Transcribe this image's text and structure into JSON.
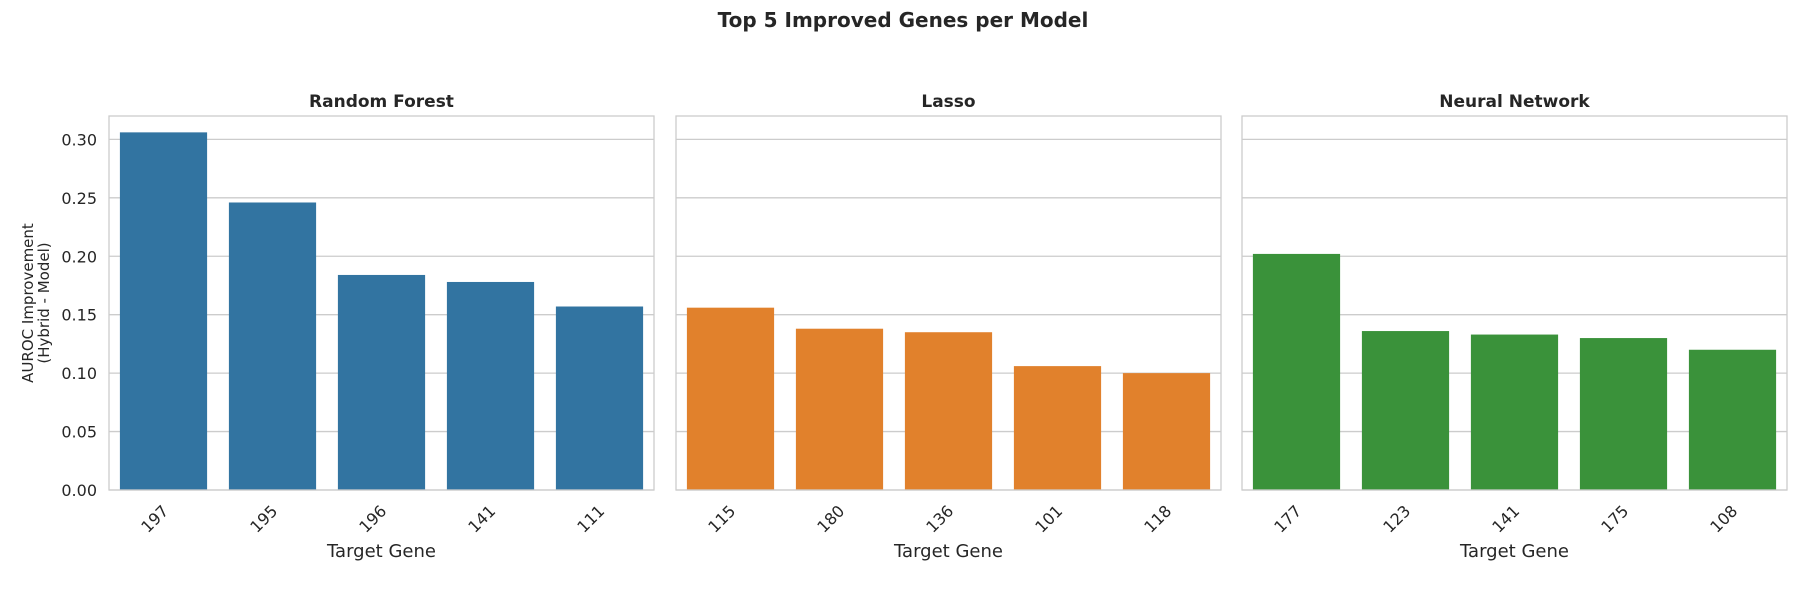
{
  "chart_data": {
    "type": "bar",
    "title": "Top 5 Improved Genes per Model",
    "ylabel": "AUROC Improvement\n(Hybrid - Model)",
    "ylim": [
      0,
      0.32
    ],
    "yticks": [
      "0.00",
      "0.05",
      "0.10",
      "0.15",
      "0.20",
      "0.25",
      "0.30"
    ],
    "ytick_values": [
      0,
      0.05,
      0.1,
      0.15,
      0.2,
      0.25,
      0.3
    ],
    "grid": true,
    "panels": [
      {
        "title": "Random Forest",
        "xlabel": "Target Gene",
        "color": "#3274a1",
        "categories": [
          "197",
          "195",
          "196",
          "141",
          "111"
        ],
        "values": [
          0.306,
          0.246,
          0.184,
          0.178,
          0.157
        ]
      },
      {
        "title": "Lasso",
        "xlabel": "Target Gene",
        "color": "#e1812c",
        "categories": [
          "115",
          "180",
          "136",
          "101",
          "118"
        ],
        "values": [
          0.156,
          0.138,
          0.135,
          0.106,
          0.1
        ]
      },
      {
        "title": "Neural Network",
        "xlabel": "Target Gene",
        "color": "#3a923a",
        "categories": [
          "177",
          "123",
          "141",
          "175",
          "108"
        ],
        "values": [
          0.202,
          0.136,
          0.133,
          0.13,
          0.12
        ]
      }
    ]
  }
}
